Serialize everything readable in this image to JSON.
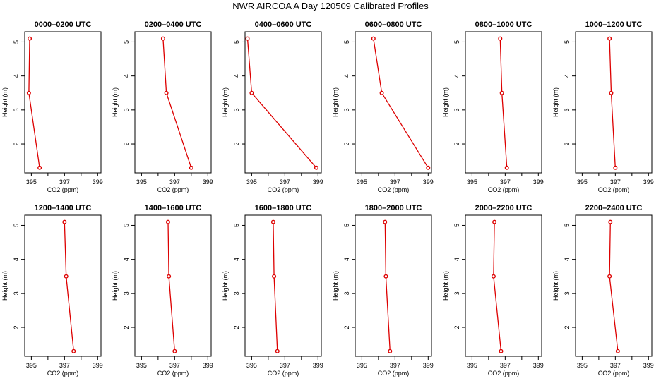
{
  "title": "NWR AIRCOA A  Day 120509  Calibrated Profiles",
  "colors": {
    "series": "#dd0000",
    "axis": "#000000"
  },
  "chart_data": {
    "type": "line",
    "xlabel": "CO2 (ppm)",
    "ylabel": "Height (m)",
    "xlim": [
      394.6,
      399.2
    ],
    "ylim": [
      1.15,
      5.3
    ],
    "xticks": [
      395,
      396,
      397,
      398,
      399
    ],
    "xtick_labels": [
      "395",
      "",
      "397",
      "",
      "399"
    ],
    "yticks": [
      2,
      3,
      4,
      5
    ],
    "ytick_labels": [
      "2",
      "3",
      "4",
      "5"
    ],
    "panels": [
      {
        "title": "0000–0200 UTC",
        "points": [
          {
            "x": 394.9,
            "y": 5.1
          },
          {
            "x": 394.85,
            "y": 3.5
          },
          {
            "x": 395.5,
            "y": 1.3
          }
        ]
      },
      {
        "title": "0200–0400 UTC",
        "points": [
          {
            "x": 396.3,
            "y": 5.1
          },
          {
            "x": 396.5,
            "y": 3.5
          },
          {
            "x": 398.0,
            "y": 1.3
          }
        ]
      },
      {
        "title": "0400–0600 UTC",
        "points": [
          {
            "x": 394.75,
            "y": 5.1
          },
          {
            "x": 395.0,
            "y": 3.5
          },
          {
            "x": 398.9,
            "y": 1.3
          }
        ]
      },
      {
        "title": "0600–0800 UTC",
        "points": [
          {
            "x": 395.7,
            "y": 5.1
          },
          {
            "x": 396.2,
            "y": 3.5
          },
          {
            "x": 399.0,
            "y": 1.3
          }
        ]
      },
      {
        "title": "0800–1000 UTC",
        "points": [
          {
            "x": 396.7,
            "y": 5.1
          },
          {
            "x": 396.8,
            "y": 3.5
          },
          {
            "x": 397.1,
            "y": 1.3
          }
        ]
      },
      {
        "title": "1000–1200 UTC",
        "points": [
          {
            "x": 396.65,
            "y": 5.1
          },
          {
            "x": 396.75,
            "y": 3.5
          },
          {
            "x": 397.0,
            "y": 1.3
          }
        ]
      },
      {
        "title": "1200–1400 UTC",
        "points": [
          {
            "x": 397.0,
            "y": 5.1
          },
          {
            "x": 397.1,
            "y": 3.5
          },
          {
            "x": 397.55,
            "y": 1.3
          }
        ]
      },
      {
        "title": "1400–1600 UTC",
        "points": [
          {
            "x": 396.6,
            "y": 5.1
          },
          {
            "x": 396.65,
            "y": 3.5
          },
          {
            "x": 397.0,
            "y": 1.3
          }
        ]
      },
      {
        "title": "1600–1800 UTC",
        "points": [
          {
            "x": 396.3,
            "y": 5.1
          },
          {
            "x": 396.35,
            "y": 3.5
          },
          {
            "x": 396.55,
            "y": 1.3
          }
        ]
      },
      {
        "title": "1800–2000 UTC",
        "points": [
          {
            "x": 396.4,
            "y": 5.1
          },
          {
            "x": 396.45,
            "y": 3.5
          },
          {
            "x": 396.7,
            "y": 1.3
          }
        ]
      },
      {
        "title": "2000–2200 UTC",
        "points": [
          {
            "x": 396.35,
            "y": 5.1
          },
          {
            "x": 396.3,
            "y": 3.5
          },
          {
            "x": 396.75,
            "y": 1.3
          }
        ]
      },
      {
        "title": "2200–2400 UTC",
        "points": [
          {
            "x": 396.7,
            "y": 5.1
          },
          {
            "x": 396.65,
            "y": 3.5
          },
          {
            "x": 397.15,
            "y": 1.3
          }
        ]
      }
    ]
  }
}
